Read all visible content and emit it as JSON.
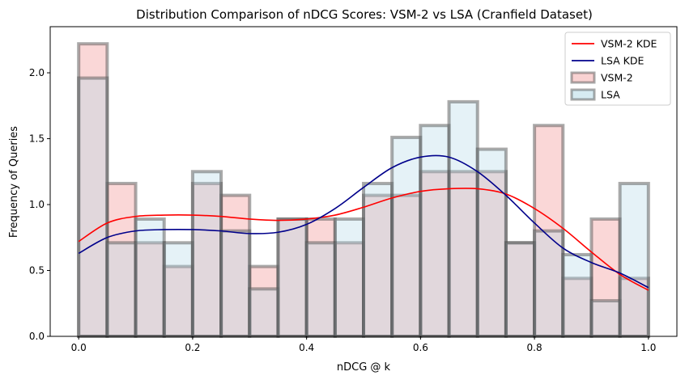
{
  "chart_data": {
    "type": "bar",
    "title": "Distribution Comparison of nDCG Scores: VSM-2 vs LSA (Cranfield Dataset)",
    "xlabel": "nDCG @ k",
    "ylabel": "Frequency of Queries",
    "xlim": [
      -0.05,
      1.05
    ],
    "ylim": [
      0,
      2.35
    ],
    "xticks": [
      "0.0",
      "0.2",
      "0.4",
      "0.6",
      "0.8",
      "1.0"
    ],
    "xtick_values": [
      0.0,
      0.2,
      0.4,
      0.6,
      0.8,
      1.0
    ],
    "yticks": [
      "0.0",
      "0.5",
      "1.0",
      "1.5",
      "2.0"
    ],
    "ytick_values": [
      0.0,
      0.5,
      1.0,
      1.5,
      2.0
    ],
    "bin_edges": [
      0.0,
      0.05,
      0.1,
      0.15,
      0.2,
      0.25,
      0.3,
      0.35,
      0.4,
      0.45,
      0.5,
      0.55,
      0.6,
      0.65,
      0.7,
      0.75,
      0.8,
      0.85,
      0.9,
      0.95,
      1.0
    ],
    "series": [
      {
        "name": "VSM-2",
        "kind": "histogram",
        "color": "#f4a6a6",
        "values": [
          2.22,
          1.16,
          0.71,
          0.53,
          1.16,
          1.07,
          0.53,
          0.89,
          0.89,
          0.71,
          1.07,
          1.07,
          1.25,
          1.25,
          1.25,
          0.71,
          1.6,
          0.44,
          0.89,
          0.44
        ]
      },
      {
        "name": "LSA",
        "kind": "histogram",
        "color": "#add8e6",
        "values": [
          1.96,
          0.71,
          0.89,
          0.71,
          1.25,
          0.8,
          0.36,
          0.89,
          0.71,
          0.89,
          1.16,
          1.51,
          1.6,
          1.78,
          1.42,
          0.71,
          0.8,
          0.62,
          0.27,
          1.16
        ]
      },
      {
        "name": "VSM-2 KDE",
        "kind": "line",
        "color": "#ff0000",
        "x": [
          0.0,
          0.05,
          0.1,
          0.15,
          0.2,
          0.25,
          0.3,
          0.35,
          0.4,
          0.45,
          0.5,
          0.55,
          0.6,
          0.65,
          0.7,
          0.75,
          0.8,
          0.85,
          0.9,
          0.95,
          1.0
        ],
        "y": [
          0.72,
          0.86,
          0.91,
          0.92,
          0.92,
          0.91,
          0.89,
          0.88,
          0.89,
          0.92,
          0.98,
          1.05,
          1.1,
          1.12,
          1.12,
          1.08,
          0.97,
          0.82,
          0.64,
          0.47,
          0.35
        ]
      },
      {
        "name": "LSA KDE",
        "kind": "line",
        "color": "#00008b",
        "x": [
          0.0,
          0.05,
          0.1,
          0.15,
          0.2,
          0.25,
          0.3,
          0.35,
          0.4,
          0.45,
          0.5,
          0.55,
          0.6,
          0.65,
          0.7,
          0.75,
          0.8,
          0.85,
          0.9,
          0.95,
          1.0
        ],
        "y": [
          0.63,
          0.75,
          0.8,
          0.81,
          0.81,
          0.8,
          0.78,
          0.79,
          0.85,
          0.97,
          1.13,
          1.28,
          1.36,
          1.36,
          1.25,
          1.07,
          0.86,
          0.67,
          0.56,
          0.48,
          0.37
        ]
      }
    ],
    "legend": {
      "position": "top-right",
      "entries": [
        {
          "label": "VSM-2 KDE",
          "kind": "line",
          "color": "#ff0000"
        },
        {
          "label": "LSA KDE",
          "kind": "line",
          "color": "#00008b"
        },
        {
          "label": "VSM-2",
          "kind": "patch",
          "color": "#f4a6a6"
        },
        {
          "label": "LSA",
          "kind": "patch",
          "color": "#add8e6"
        }
      ]
    },
    "grid": false,
    "bar_edge_color": "#555555"
  }
}
